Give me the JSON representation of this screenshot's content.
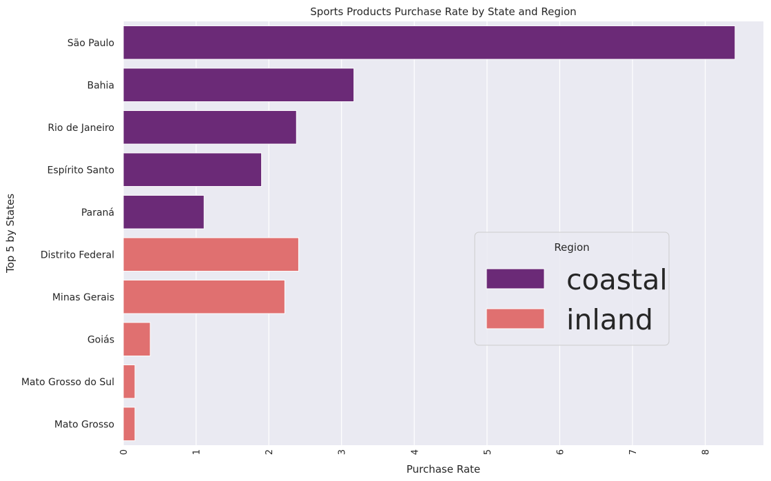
{
  "chart_data": {
    "type": "bar",
    "orientation": "horizontal",
    "title": "Sports Products Purchase Rate by State and Region",
    "xlabel": "Purchase Rate",
    "ylabel": "Top 5 by States",
    "xlim": [
      0,
      8.8
    ],
    "xticks": [
      0,
      1,
      2,
      3,
      4,
      5,
      6,
      7,
      8
    ],
    "grid": true,
    "legend": {
      "title": "Region",
      "placement": "center-right",
      "entries": [
        {
          "name": "coastal",
          "color": "#6b2a77"
        },
        {
          "name": "inland",
          "color": "#e07070"
        }
      ]
    },
    "categories": [
      "São Paulo",
      "Bahia",
      "Rio de Janeiro",
      "Espírito Santo",
      "Paraná",
      "Distrito Federal",
      "Minas Gerais",
      "Goiás",
      "Mato Grosso do Sul",
      "Mato Grosso"
    ],
    "values": [
      8.41,
      3.17,
      2.38,
      1.9,
      1.11,
      2.41,
      2.22,
      0.37,
      0.16,
      0.16
    ],
    "region": [
      "coastal",
      "coastal",
      "coastal",
      "coastal",
      "coastal",
      "inland",
      "inland",
      "inland",
      "inland",
      "inland"
    ]
  },
  "colors": {
    "plot_background": "#eaeaf2",
    "grid": "#ffffff",
    "coastal": "#6b2a77",
    "inland": "#e07070"
  }
}
